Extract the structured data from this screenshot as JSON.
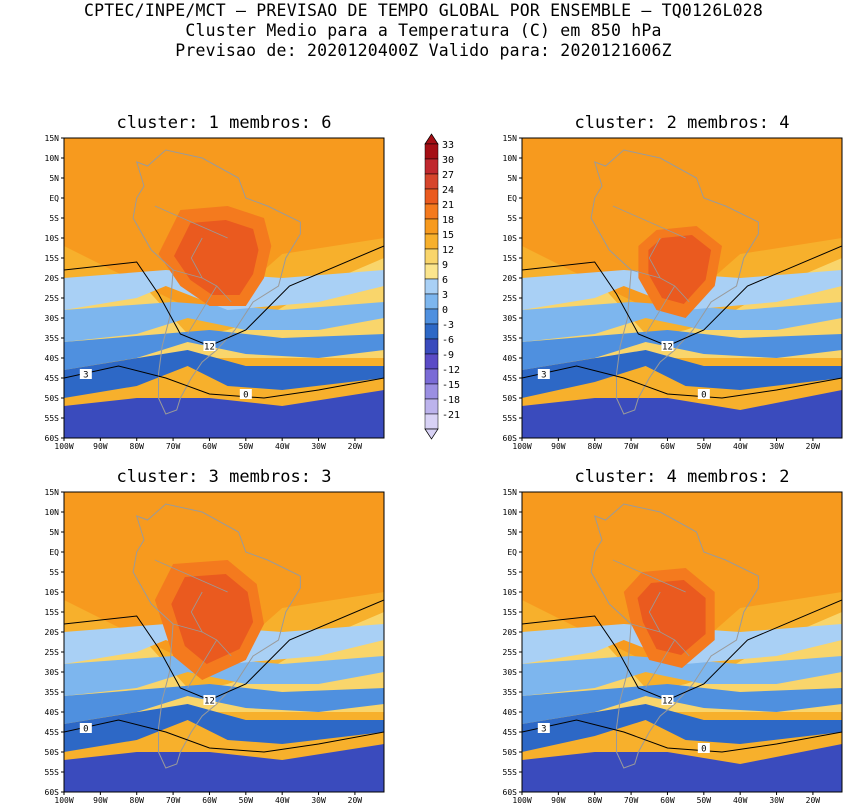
{
  "header": {
    "line1": "CPTEC/INPE/MCT – PREVISAO DE TEMPO GLOBAL POR ENSEMBLE – TQ0126L028",
    "line2": "Cluster Medio para a Temperatura (C) em 850 hPa",
    "line3": "Previsao de: 2020120400Z   Valido para: 2020121606Z"
  },
  "panels": [
    {
      "title": "cluster: 1   membros: 6",
      "contour_labels": [
        "12",
        "3",
        "0"
      ]
    },
    {
      "title": "cluster: 2   membros: 4",
      "contour_labels": [
        "12",
        "3",
        "0"
      ]
    },
    {
      "title": "cluster: 3   membros: 3",
      "contour_labels": [
        "12",
        "0"
      ]
    },
    {
      "title": "cluster: 4   membros: 2",
      "contour_labels": [
        "12",
        "3",
        "0"
      ]
    }
  ],
  "axes": {
    "lat_ticks": [
      "15N",
      "10N",
      "5N",
      "EQ",
      "5S",
      "10S",
      "15S",
      "20S",
      "25S",
      "30S",
      "35S",
      "40S",
      "45S",
      "50S",
      "55S",
      "60S"
    ],
    "lon_ticks": [
      "100W",
      "90W",
      "80W",
      "70W",
      "60W",
      "50W",
      "40W",
      "30W",
      "20W"
    ]
  },
  "colorbar": {
    "levels": [
      "33",
      "30",
      "27",
      "24",
      "21",
      "18",
      "15",
      "12",
      "9",
      "6",
      "3",
      "0",
      "-3",
      "-6",
      "-9",
      "-12",
      "-15",
      "-18",
      "-21"
    ],
    "colors": [
      "#a50f15",
      "#c0282e",
      "#d6452c",
      "#ea5a1f",
      "#f47a1e",
      "#f79a1e",
      "#f7b02c",
      "#f9d56b",
      "#fbe58d",
      "#a9d0f5",
      "#7db6ee",
      "#4f90df",
      "#2d68c6",
      "#3a4bbd",
      "#5b4bc6",
      "#7a6bd6",
      "#9b8fe2",
      "#bcb3ec",
      "#d8d2f5"
    ]
  },
  "colors": {
    "country_borders": "#9a9a9a",
    "contour": "#000000"
  }
}
